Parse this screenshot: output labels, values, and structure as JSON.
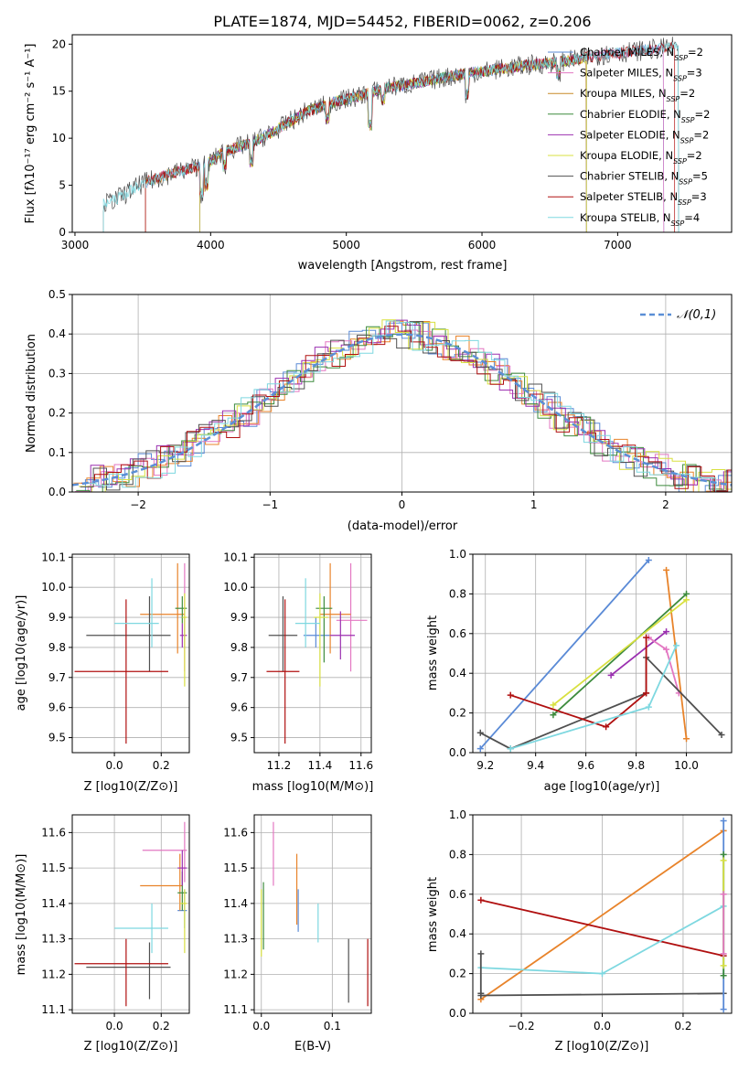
{
  "chart_data": [
    {
      "id": "spectrum",
      "type": "line",
      "title": "PLATE=1874, MJD=54452, FIBERID=0062, z=0.206",
      "xlabel": "wavelength [Angstrom, rest frame]",
      "ylabel": "Flux [fλ10⁻¹⁷ erg cm⁻² s⁻¹ A⁻¹]",
      "xlim": [
        2980,
        7840
      ],
      "ylim": [
        0,
        21
      ],
      "xticks": [
        3000,
        4000,
        5000,
        6000,
        7000
      ],
      "yticks": [
        0,
        5,
        10,
        15,
        20
      ],
      "continuum": [
        [
          3210,
          3.0
        ],
        [
          3300,
          3.5
        ],
        [
          3500,
          5.2
        ],
        [
          3700,
          6.2
        ],
        [
          3900,
          7.0
        ],
        [
          4000,
          7.5
        ],
        [
          4100,
          8.6
        ],
        [
          4300,
          9.5
        ],
        [
          4500,
          11.0
        ],
        [
          4700,
          12.8
        ],
        [
          4900,
          13.8
        ],
        [
          5100,
          14.5
        ],
        [
          5300,
          15.4
        ],
        [
          5500,
          15.8
        ],
        [
          5700,
          16.4
        ],
        [
          5900,
          16.9
        ],
        [
          6100,
          17.3
        ],
        [
          6300,
          17.7
        ],
        [
          6500,
          18.0
        ],
        [
          6700,
          18.4
        ],
        [
          6900,
          18.9
        ],
        [
          7100,
          19.2
        ],
        [
          7300,
          19.5
        ],
        [
          7450,
          19.8
        ]
      ],
      "series": [
        {
          "name": "Chabrier MILES, N_SSP=2",
          "color": "#5a8ad6",
          "start": 3520,
          "end": 7340
        },
        {
          "name": "Salpeter MILES, N_SSP=3",
          "color": "#e377c2",
          "start": 3520,
          "end": 7340
        },
        {
          "name": "Kroupa MILES, N_SSP=2",
          "color": "#c88a28",
          "start": 3520,
          "end": 6770
        },
        {
          "name": "Chabrier ELODIE, N_SSP=2",
          "color": "#3d8b3d",
          "start": 3920,
          "end": 6770
        },
        {
          "name": "Salpeter ELODIE, N_SSP=2",
          "color": "#9b30b0",
          "start": 3920,
          "end": 6770
        },
        {
          "name": "Kroupa ELODIE, N_SSP=2",
          "color": "#d8e040",
          "start": 3920,
          "end": 6770
        },
        {
          "name": "Chabrier STELIB, N_SSP=5",
          "color": "#505050",
          "start": 3210,
          "end": 7450
        },
        {
          "name": "Salpeter STELIB, N_SSP=3",
          "color": "#b01010",
          "start": 3520,
          "end": 7420
        },
        {
          "name": "Kroupa STELIB, N_SSP=4",
          "color": "#7ed8e0",
          "start": 3210,
          "end": 7450
        }
      ],
      "legend": "upper-right"
    },
    {
      "id": "residuals",
      "type": "line",
      "xlabel": "(data-model)/error",
      "ylabel": "Normed distribution",
      "xlim": [
        -2.5,
        2.5
      ],
      "ylim": [
        0,
        0.5
      ],
      "xticks": [
        -2,
        -1,
        0,
        1,
        2
      ],
      "yticks": [
        0.0,
        0.1,
        0.2,
        0.3,
        0.4,
        0.5
      ],
      "gaussian_label": "𝒩(0,1)",
      "gaussian_color": "#5b8fd6",
      "histogram_colors": [
        "#5a8ad6",
        "#e8832a",
        "#e377c2",
        "#3d8b3d",
        "#9b30b0",
        "#d8e040",
        "#505050",
        "#b01010",
        "#7ed8e0"
      ],
      "grid": true
    },
    {
      "id": "age_vs_Z",
      "type": "scatter",
      "xlabel": "Z [log10(Z/Z⊙)]",
      "ylabel": "age [log10(age/yr)]",
      "xlim": [
        -0.18,
        0.32
      ],
      "ylim": [
        9.45,
        10.11
      ],
      "xticks": [
        0.0,
        0.2
      ],
      "yticks": [
        9.5,
        9.6,
        9.7,
        9.8,
        9.9,
        10.0,
        10.1
      ],
      "points": [
        {
          "color": "#5a8ad6",
          "x": 0.3,
          "y": 9.84,
          "dx": 0.01,
          "dy": [
            9.8,
            9.9
          ]
        },
        {
          "color": "#e377c2",
          "x": 0.3,
          "y": 9.9,
          "dx": 0.02,
          "dy": [
            9.72,
            10.08
          ]
        },
        {
          "color": "#e8832a",
          "x": 0.27,
          "y": 9.91,
          "dx": [
            0.11,
            0.3
          ],
          "dy": [
            9.78,
            10.08
          ]
        },
        {
          "color": "#3d8b3d",
          "x": 0.29,
          "y": 9.93,
          "dx": [
            0.26,
            0.31
          ],
          "dy": [
            9.88,
            9.97
          ]
        },
        {
          "color": "#9b30b0",
          "x": 0.29,
          "y": 9.84,
          "dx": [
            0.28,
            0.31
          ],
          "dy": [
            9.8,
            9.88
          ]
        },
        {
          "color": "#d8e040",
          "x": 0.3,
          "y": 9.9,
          "dx": [
            0.29,
            0.31
          ],
          "dy": [
            9.67,
            9.98
          ]
        },
        {
          "color": "#505050",
          "x": 0.15,
          "y": 9.84,
          "dx": [
            -0.12,
            0.24
          ],
          "dy": [
            9.72,
            9.97
          ]
        },
        {
          "color": "#b01010",
          "x": 0.05,
          "y": 9.72,
          "dx": [
            -0.17,
            0.23
          ],
          "dy": [
            9.48,
            9.96
          ]
        },
        {
          "color": "#7ed8e0",
          "x": 0.16,
          "y": 9.88,
          "dx": [
            0.0,
            0.19
          ],
          "dy": [
            9.8,
            10.03
          ]
        }
      ],
      "grid": true
    },
    {
      "id": "age_vs_mass",
      "type": "scatter",
      "xlabel": "mass [log10(M/M⊙)]",
      "ylabel": "",
      "xlim": [
        11.08,
        11.65
      ],
      "ylim": [
        9.45,
        10.11
      ],
      "xticks": [
        11.2,
        11.4,
        11.6
      ],
      "yticks": [
        9.5,
        9.6,
        9.7,
        9.8,
        9.9,
        10.0,
        10.1
      ],
      "points": [
        {
          "color": "#5a8ad6",
          "x": 11.38,
          "y": 9.84,
          "dx": [
            11.32,
            11.45
          ],
          "dy": [
            9.8,
            9.9
          ]
        },
        {
          "color": "#e377c2",
          "x": 11.55,
          "y": 9.89,
          "dx": [
            11.48,
            11.63
          ],
          "dy": [
            9.72,
            10.08
          ]
        },
        {
          "color": "#e8832a",
          "x": 11.45,
          "y": 9.91,
          "dx": [
            11.4,
            11.55
          ],
          "dy": [
            9.78,
            10.08
          ]
        },
        {
          "color": "#3d8b3d",
          "x": 11.42,
          "y": 9.93,
          "dx": [
            11.38,
            11.46
          ],
          "dy": [
            9.75,
            9.97
          ]
        },
        {
          "color": "#9b30b0",
          "x": 11.5,
          "y": 9.84,
          "dx": [
            11.45,
            11.57
          ],
          "dy": [
            9.76,
            9.92
          ]
        },
        {
          "color": "#d8e040",
          "x": 11.4,
          "y": 9.9,
          "dx": [
            11.37,
            11.44
          ],
          "dy": [
            9.67,
            9.98
          ]
        },
        {
          "color": "#505050",
          "x": 11.22,
          "y": 9.84,
          "dx": [
            11.15,
            11.29
          ],
          "dy": [
            9.72,
            9.97
          ]
        },
        {
          "color": "#b01010",
          "x": 11.23,
          "y": 9.72,
          "dx": [
            11.14,
            11.3
          ],
          "dy": [
            9.48,
            9.96
          ]
        },
        {
          "color": "#7ed8e0",
          "x": 11.33,
          "y": 9.88,
          "dx": [
            11.28,
            11.4
          ],
          "dy": [
            9.8,
            10.03
          ]
        }
      ],
      "grid": true
    },
    {
      "id": "weight_vs_age",
      "type": "line",
      "xlabel": "age [log10(age/yr)]",
      "ylabel": "mass weight",
      "xlim": [
        9.15,
        10.18
      ],
      "ylim": [
        0,
        1
      ],
      "xticks": [
        9.2,
        9.4,
        9.6,
        9.8,
        10.0
      ],
      "yticks": [
        0.0,
        0.2,
        0.4,
        0.6,
        0.8,
        1.0
      ],
      "series": [
        {
          "color": "#5a8ad6",
          "x": [
            9.18,
            9.85
          ],
          "y": [
            0.02,
            0.97
          ]
        },
        {
          "color": "#e8832a",
          "x": [
            9.92,
            10.0
          ],
          "y": [
            0.92,
            0.07
          ]
        },
        {
          "color": "#3d8b3d",
          "x": [
            9.47,
            10.0
          ],
          "y": [
            0.19,
            0.8
          ]
        },
        {
          "color": "#d8e040",
          "x": [
            9.47,
            10.0
          ],
          "y": [
            0.24,
            0.77
          ]
        },
        {
          "color": "#9b30b0",
          "x": [
            9.7,
            9.92
          ],
          "y": [
            0.39,
            0.61
          ]
        },
        {
          "color": "#e377c2",
          "x": [
            9.85,
            9.92,
            9.97
          ],
          "y": [
            0.58,
            0.52,
            0.3
          ]
        },
        {
          "color": "#505050",
          "x": [
            9.18,
            9.3,
            9.84,
            9.84,
            10.14
          ],
          "y": [
            0.1,
            0.02,
            0.3,
            0.48,
            0.09
          ]
        },
        {
          "color": "#b01010",
          "x": [
            9.3,
            9.68,
            9.84,
            9.84
          ],
          "y": [
            0.29,
            0.13,
            0.3,
            0.58
          ]
        },
        {
          "color": "#7ed8e0",
          "x": [
            9.3,
            9.85,
            9.96
          ],
          "y": [
            0.02,
            0.23,
            0.54
          ]
        }
      ],
      "grid": true
    },
    {
      "id": "mass_vs_Z",
      "type": "scatter",
      "xlabel": "Z [log10(Z/Z⊙)]",
      "ylabel": "mass [log10(M/M⊙)]",
      "xlim": [
        -0.18,
        0.32
      ],
      "ylim": [
        11.09,
        11.65
      ],
      "xticks": [
        0.0,
        0.2
      ],
      "yticks": [
        11.1,
        11.2,
        11.3,
        11.4,
        11.5,
        11.6
      ],
      "points": [
        {
          "color": "#5a8ad6",
          "x": 0.3,
          "y": 11.38,
          "dx": [
            0.27,
            0.31
          ],
          "dy": [
            11.33,
            11.44
          ]
        },
        {
          "color": "#e377c2",
          "x": 0.3,
          "y": 11.55,
          "dx": [
            0.12,
            0.31
          ],
          "dy": [
            11.46,
            11.63
          ]
        },
        {
          "color": "#e8832a",
          "x": 0.28,
          "y": 11.45,
          "dx": [
            0.11,
            0.29
          ],
          "dy": [
            11.38,
            11.54
          ]
        },
        {
          "color": "#3d8b3d",
          "x": 0.29,
          "y": 11.43,
          "dx": [
            0.27,
            0.31
          ],
          "dy": [
            11.38,
            11.49
          ]
        },
        {
          "color": "#9b30b0",
          "x": 0.29,
          "y": 11.5,
          "dx": [
            0.27,
            0.31
          ],
          "dy": [
            11.45,
            11.55
          ]
        },
        {
          "color": "#d8e040",
          "x": 0.3,
          "y": 11.4,
          "dx": [
            0.28,
            0.31
          ],
          "dy": [
            11.26,
            11.44
          ]
        },
        {
          "color": "#505050",
          "x": 0.15,
          "y": 11.22,
          "dx": [
            -0.12,
            0.24
          ],
          "dy": [
            11.13,
            11.29
          ]
        },
        {
          "color": "#b01010",
          "x": 0.05,
          "y": 11.23,
          "dx": [
            -0.17,
            0.23
          ],
          "dy": [
            11.11,
            11.3
          ]
        },
        {
          "color": "#7ed8e0",
          "x": 0.16,
          "y": 11.33,
          "dx": [
            0.0,
            0.23
          ],
          "dy": [
            11.26,
            11.4
          ]
        }
      ],
      "grid": true
    },
    {
      "id": "mass_vs_EBV",
      "type": "scatter",
      "xlabel": "E(B-V)",
      "ylabel": "",
      "xlim": [
        -0.01,
        0.155
      ],
      "ylim": [
        11.09,
        11.65
      ],
      "xticks": [
        0.0,
        0.1
      ],
      "yticks": [
        11.1,
        11.2,
        11.3,
        11.4,
        11.5,
        11.6
      ],
      "points": [
        {
          "color": "#d8e040",
          "x": 0.0,
          "dy": [
            11.25,
            11.44
          ]
        },
        {
          "color": "#3d8b3d",
          "x": 0.003,
          "dy": [
            11.27,
            11.46
          ]
        },
        {
          "color": "#e377c2",
          "x": 0.017,
          "dy": [
            11.45,
            11.63
          ]
        },
        {
          "color": "#e8832a",
          "x": 0.05,
          "dy": [
            11.34,
            11.54
          ]
        },
        {
          "color": "#5a8ad6",
          "x": 0.052,
          "dy": [
            11.32,
            11.44
          ]
        },
        {
          "color": "#7ed8e0",
          "x": 0.08,
          "dy": [
            11.29,
            11.4
          ]
        },
        {
          "color": "#505050",
          "x": 0.123,
          "dy": [
            11.12,
            11.3
          ]
        },
        {
          "color": "#b01010",
          "x": 0.15,
          "dy": [
            11.11,
            11.3
          ]
        }
      ],
      "grid": true
    },
    {
      "id": "weight_vs_Z",
      "type": "line",
      "xlabel": "Z [log10(Z/Z⊙)]",
      "ylabel": "mass weight",
      "xlim": [
        -0.32,
        0.32
      ],
      "ylim": [
        0,
        1
      ],
      "xticks": [
        -0.2,
        0.0,
        0.2
      ],
      "yticks": [
        0.0,
        0.2,
        0.4,
        0.6,
        0.8,
        1.0
      ],
      "series": [
        {
          "color": "#e8832a",
          "x": [
            -0.3,
            0.3
          ],
          "y": [
            0.07,
            0.92
          ]
        },
        {
          "color": "#b01010",
          "x": [
            -0.3,
            0.3
          ],
          "y": [
            0.57,
            0.29
          ]
        },
        {
          "color": "#7ed8e0",
          "x": [
            -0.3,
            0.0,
            0.3
          ],
          "y": [
            0.23,
            0.2,
            0.54
          ]
        },
        {
          "color": "#505050",
          "x": [
            -0.3,
            0.3
          ],
          "y": [
            0.09,
            0.1
          ]
        },
        {
          "color": "#505050",
          "x": [
            -0.3,
            -0.3
          ],
          "y": [
            0.1,
            0.3
          ]
        },
        {
          "color": "#5a8ad6",
          "x": [
            0.3,
            0.3
          ],
          "y": [
            0.02,
            0.97
          ]
        },
        {
          "color": "#3d8b3d",
          "x": [
            0.3,
            0.3
          ],
          "y": [
            0.19,
            0.8
          ]
        },
        {
          "color": "#d8e040",
          "x": [
            0.3,
            0.3
          ],
          "y": [
            0.24,
            0.77
          ]
        },
        {
          "color": "#e377c2",
          "x": [
            0.3,
            0.3
          ],
          "y": [
            0.3,
            0.6
          ]
        }
      ],
      "grid": true
    }
  ]
}
